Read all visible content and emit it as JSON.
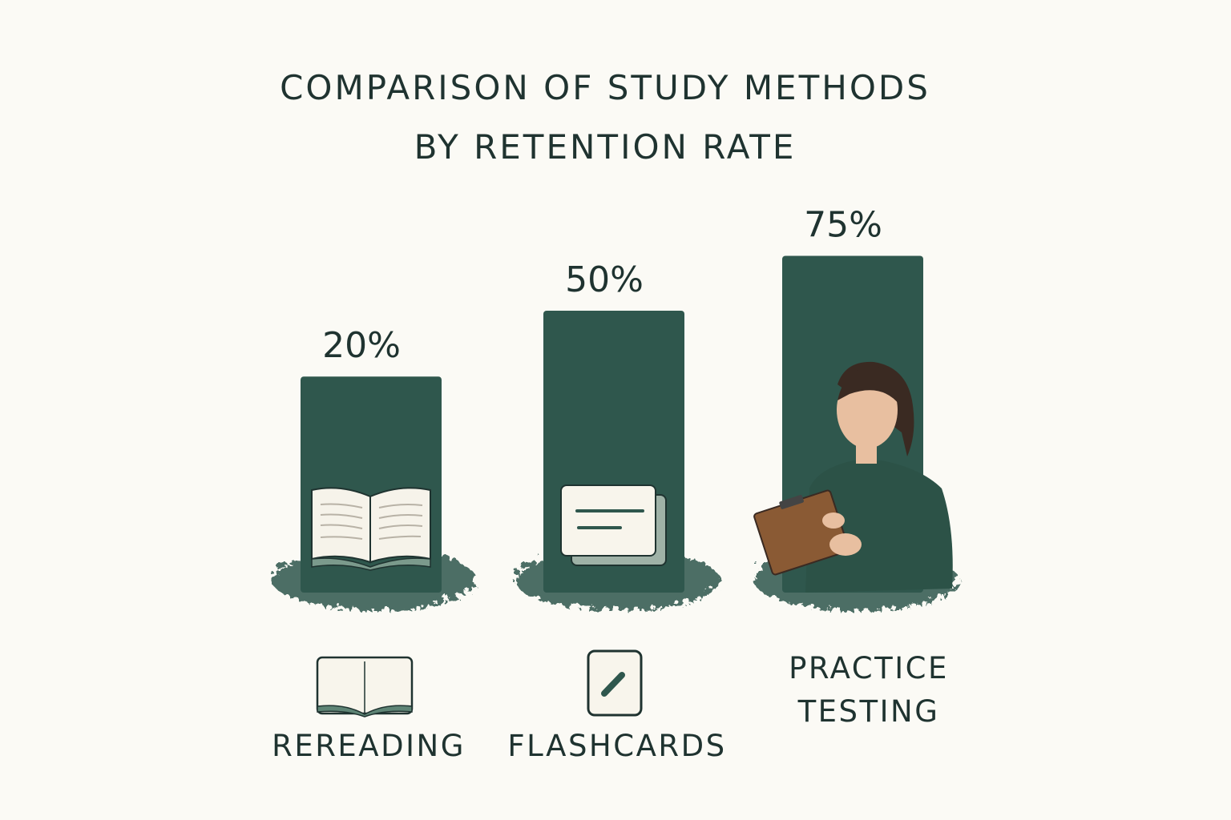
{
  "chart_data": {
    "type": "bar",
    "title": "COMPARISON OF STUDY METHODS BY RETENTION RATE",
    "title_lines": [
      "COMPARISON OF STUDY METHODS",
      "BY RETENTION RATE"
    ],
    "categories": [
      "REREADING",
      "FLASHCARDS",
      "PRACTICE TESTING"
    ],
    "category_lines": [
      [
        "REREADING"
      ],
      [
        "FLASHCARDS"
      ],
      [
        "PRACTICE",
        "TESTING"
      ]
    ],
    "values": [
      20,
      50,
      75
    ],
    "data_labels": [
      "20%",
      "50%",
      "75%"
    ],
    "icons": [
      "open-book-icon",
      "flashcard-pencil-icon",
      "person-with-clipboard-illustration"
    ],
    "unit": "%",
    "grid": false,
    "legend": "none",
    "colors": {
      "bar": "#2f574d",
      "background": "#fbfaf5",
      "text": "#1f3330"
    }
  }
}
